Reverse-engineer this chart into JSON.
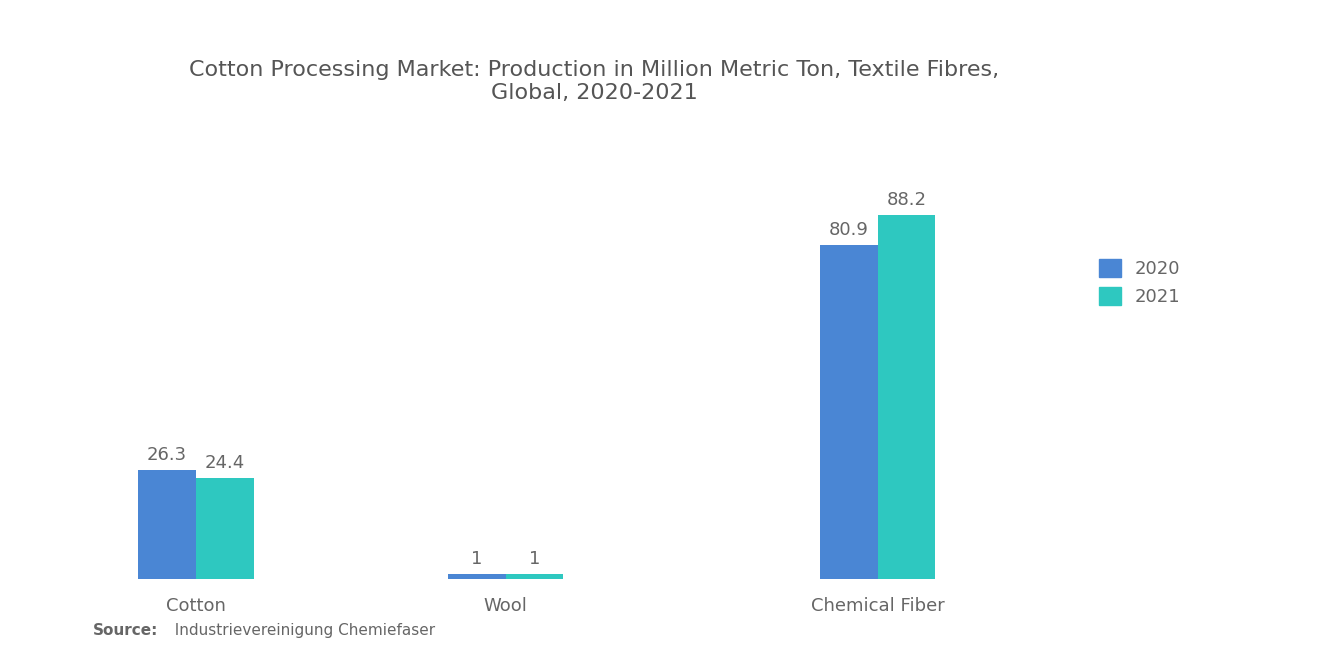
{
  "title": "Cotton Processing Market: Production in Million Metric Ton, Textile Fibres,\nGlobal, 2020-2021",
  "categories": [
    "Cotton",
    "Wool",
    "Chemical Fiber"
  ],
  "values_2020": [
    26.3,
    1,
    80.9
  ],
  "values_2021": [
    24.4,
    1,
    88.2
  ],
  "color_2020": "#4A86D4",
  "color_2021": "#2EC8C0",
  "legend_labels": [
    "2020",
    "2021"
  ],
  "source_bold": "Source:",
  "source_rest": "  Industrievereinigung Chemiefaser",
  "title_fontsize": 16,
  "label_fontsize": 13,
  "annotation_fontsize": 13,
  "bar_width": 0.28,
  "background_color": "#ffffff",
  "ylim": [
    0,
    100
  ]
}
